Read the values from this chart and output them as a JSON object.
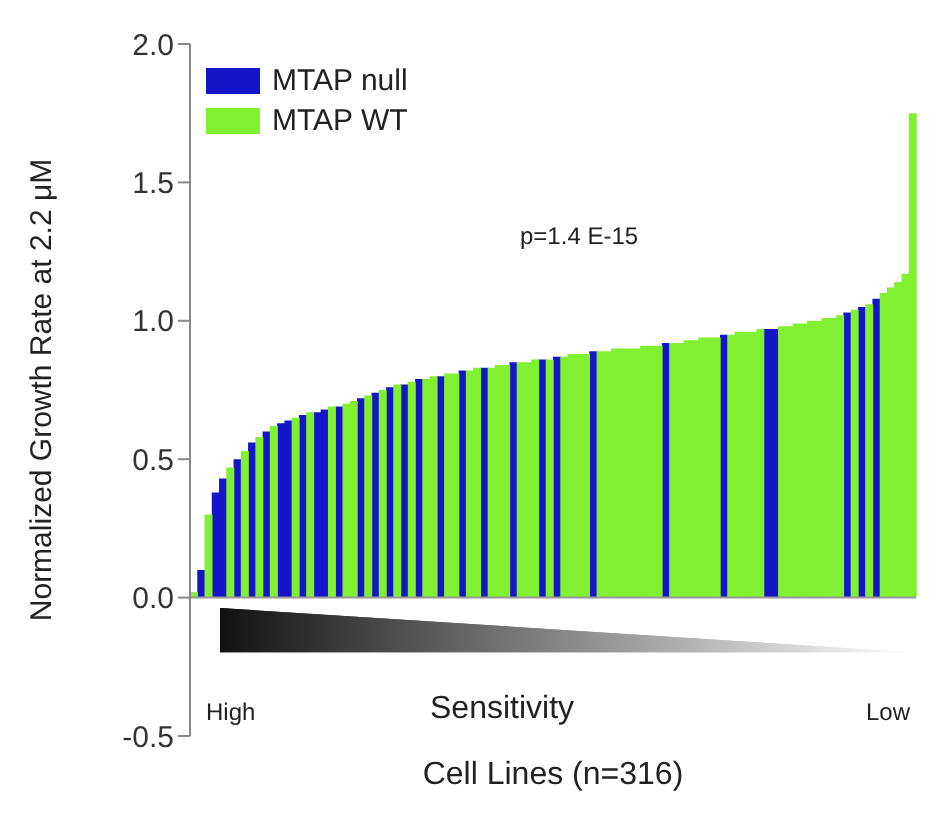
{
  "chart_data": {
    "type": "bar",
    "stacked": true,
    "xlabel": "Cell Lines (n=316)",
    "ylabel": "Normalized Growth Rate at 2.2 μM",
    "annotations": [
      "p=1.4 E-15",
      "High",
      "Sensitivity",
      "Low"
    ],
    "legend": "top left",
    "grid": false,
    "ylim": [
      -0.5,
      2.0
    ],
    "yticks": [
      {
        "value": -0.5,
        "label": "-0.5"
      },
      {
        "value": 0,
        "label": "0.0"
      },
      {
        "value": 0.5,
        "label": "0.5"
      },
      {
        "value": 1,
        "label": "1.0"
      },
      {
        "value": 1.5,
        "label": "1.5"
      },
      {
        "value": 2,
        "label": "2.0"
      }
    ],
    "ref_lines": [
      {
        "axis": "y",
        "value": 0,
        "color": "#999999"
      }
    ],
    "categories": [
      null,
      null,
      null,
      null,
      null,
      null,
      null,
      null,
      null,
      null,
      null,
      null,
      null,
      null,
      null,
      null,
      null,
      null,
      null,
      null,
      null,
      null,
      null,
      null,
      null,
      null,
      null,
      null,
      null,
      null,
      null,
      null,
      null,
      null,
      null,
      null,
      null,
      null,
      null,
      null,
      null,
      null,
      null,
      null,
      null,
      null,
      null,
      null,
      null,
      null,
      null,
      null,
      null,
      null,
      null,
      null,
      null,
      null,
      null,
      null,
      null,
      null,
      null,
      null,
      null,
      null,
      null,
      null,
      null,
      null,
      null,
      null,
      null,
      null,
      null,
      null,
      null,
      null,
      null,
      null,
      null,
      null,
      null,
      null,
      null,
      null,
      null,
      null,
      null,
      null,
      null,
      null,
      null,
      null,
      null,
      null,
      null,
      null,
      null,
      null
    ],
    "series": [
      {
        "name": "MTAP null",
        "color": "#1414c8",
        "values": [
          null,
          0.1,
          null,
          0.38,
          0.43,
          null,
          0.5,
          null,
          0.56,
          null,
          0.6,
          null,
          0.63,
          0.64,
          null,
          0.66,
          null,
          0.67,
          0.68,
          null,
          0.69,
          null,
          null,
          0.72,
          null,
          0.74,
          null,
          0.76,
          null,
          0.77,
          null,
          0.79,
          null,
          null,
          0.8,
          null,
          null,
          0.82,
          null,
          null,
          0.83,
          null,
          null,
          null,
          0.85,
          null,
          null,
          null,
          0.86,
          null,
          0.87,
          null,
          null,
          null,
          null,
          0.89,
          null,
          null,
          null,
          null,
          null,
          null,
          null,
          null,
          null,
          0.92,
          null,
          null,
          null,
          null,
          null,
          null,
          null,
          0.95,
          null,
          null,
          null,
          null,
          null,
          0.97,
          0.97,
          null,
          null,
          null,
          null,
          null,
          null,
          null,
          null,
          null,
          1.03,
          null,
          1.05,
          null,
          1.08,
          null,
          null,
          null,
          null,
          null
        ]
      },
      {
        "name": "MTAP WT",
        "color": "#80f030",
        "values": [
          0.02,
          null,
          0.3,
          null,
          null,
          0.47,
          null,
          0.53,
          null,
          0.58,
          null,
          0.62,
          null,
          null,
          0.65,
          null,
          0.67,
          null,
          null,
          0.69,
          null,
          0.7,
          0.71,
          null,
          0.73,
          null,
          0.75,
          null,
          0.77,
          null,
          0.78,
          null,
          0.79,
          0.8,
          null,
          0.81,
          0.81,
          null,
          0.82,
          0.83,
          null,
          0.83,
          0.84,
          0.84,
          null,
          0.85,
          0.85,
          0.86,
          null,
          0.86,
          null,
          0.87,
          0.88,
          0.88,
          0.88,
          null,
          0.89,
          0.89,
          0.9,
          0.9,
          0.9,
          0.9,
          0.91,
          0.91,
          0.91,
          null,
          0.92,
          0.92,
          0.93,
          0.93,
          0.94,
          0.94,
          0.94,
          null,
          0.95,
          0.96,
          0.96,
          0.96,
          0.97,
          null,
          null,
          0.98,
          0.98,
          0.99,
          0.99,
          1.0,
          1.0,
          1.01,
          1.01,
          1.02,
          null,
          1.04,
          null,
          1.06,
          null,
          1.1,
          1.12,
          1.14,
          1.17,
          1.75
        ]
      }
    ]
  }
}
